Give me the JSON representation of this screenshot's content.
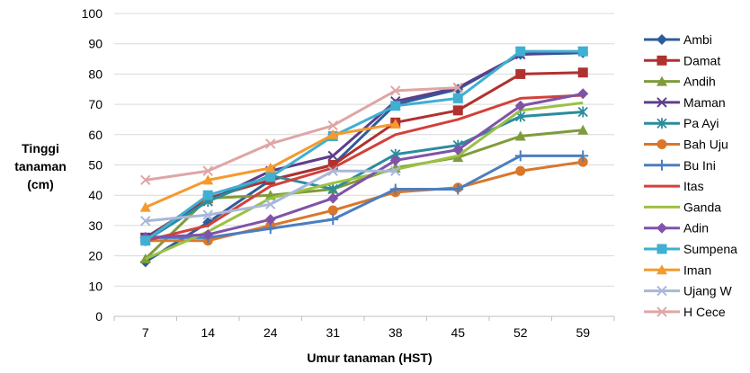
{
  "chart_data": {
    "type": "line",
    "title": "",
    "xlabel": "Umur tanaman (HST)",
    "ylabel": [
      "Tinggi",
      "tanaman",
      "(cm)"
    ],
    "ylim": [
      0,
      100
    ],
    "yticks": [
      0,
      10,
      20,
      30,
      40,
      50,
      60,
      70,
      80,
      90,
      100
    ],
    "grid": "horizontal",
    "legend_position": "right",
    "categories": [
      "7",
      "14",
      "24",
      "31",
      "38",
      "45",
      "52",
      "59"
    ],
    "series": [
      {
        "name": "Ambi",
        "color": "#2E5C9A",
        "marker": "diamond",
        "values": [
          18,
          31,
          45,
          50,
          70,
          75,
          86.5,
          87
        ]
      },
      {
        "name": "Damat",
        "color": "#B0312E",
        "marker": "square",
        "values": [
          26,
          39,
          45,
          50,
          64,
          68,
          80,
          80.5
        ]
      },
      {
        "name": "Andih",
        "color": "#7E9C3A",
        "marker": "triangle",
        "values": [
          19,
          39,
          40,
          42,
          49,
          52.5,
          59.5,
          61.5
        ]
      },
      {
        "name": "Maman",
        "color": "#5E3E8A",
        "marker": "x",
        "values": [
          26,
          38,
          48,
          53,
          71,
          75.5,
          86.5,
          87.5
        ]
      },
      {
        "name": "Pa Ayi",
        "color": "#2B8C9E",
        "marker": "star",
        "values": [
          25,
          38,
          46.5,
          42,
          53.5,
          56.5,
          66,
          67.5
        ]
      },
      {
        "name": "Bah Uju",
        "color": "#D9772B",
        "marker": "circle",
        "values": [
          25,
          25,
          30,
          35,
          41,
          42.5,
          48,
          51
        ]
      },
      {
        "name": "Bu Ini",
        "color": "#4A7EC0",
        "marker": "plus",
        "values": [
          26,
          26,
          29,
          32,
          42,
          42,
          53,
          53
        ]
      },
      {
        "name": "Itas",
        "color": "#D2413A",
        "marker": "none",
        "values": [
          25,
          30,
          43,
          49,
          60,
          65,
          72,
          73
        ]
      },
      {
        "name": "Ganda",
        "color": "#9BC144",
        "marker": "none",
        "values": [
          19,
          28,
          39,
          44,
          48.5,
          53,
          68,
          70.5
        ]
      },
      {
        "name": "Adin",
        "color": "#8052A8",
        "marker": "diamond",
        "values": [
          26,
          27,
          32,
          39,
          51.5,
          55,
          69.5,
          73.5
        ]
      },
      {
        "name": "Sumpena",
        "color": "#3FAFD2",
        "marker": "square",
        "values": [
          25,
          40,
          46,
          59.5,
          69.5,
          72,
          87.5,
          87.5
        ]
      },
      {
        "name": "Iman",
        "color": "#F59A2C",
        "marker": "triangle",
        "values": [
          36,
          45,
          49,
          60,
          63.5,
          null,
          null,
          null
        ]
      },
      {
        "name": "Ujang W",
        "color": "#A7B8D9",
        "marker": "x",
        "values": [
          31.5,
          33.5,
          37,
          48,
          48,
          null,
          null,
          null
        ]
      },
      {
        "name": "H Cece",
        "color": "#DFA6A6",
        "marker": "x",
        "values": [
          45,
          48,
          57,
          63,
          74.5,
          75.5,
          null,
          null
        ]
      }
    ]
  }
}
